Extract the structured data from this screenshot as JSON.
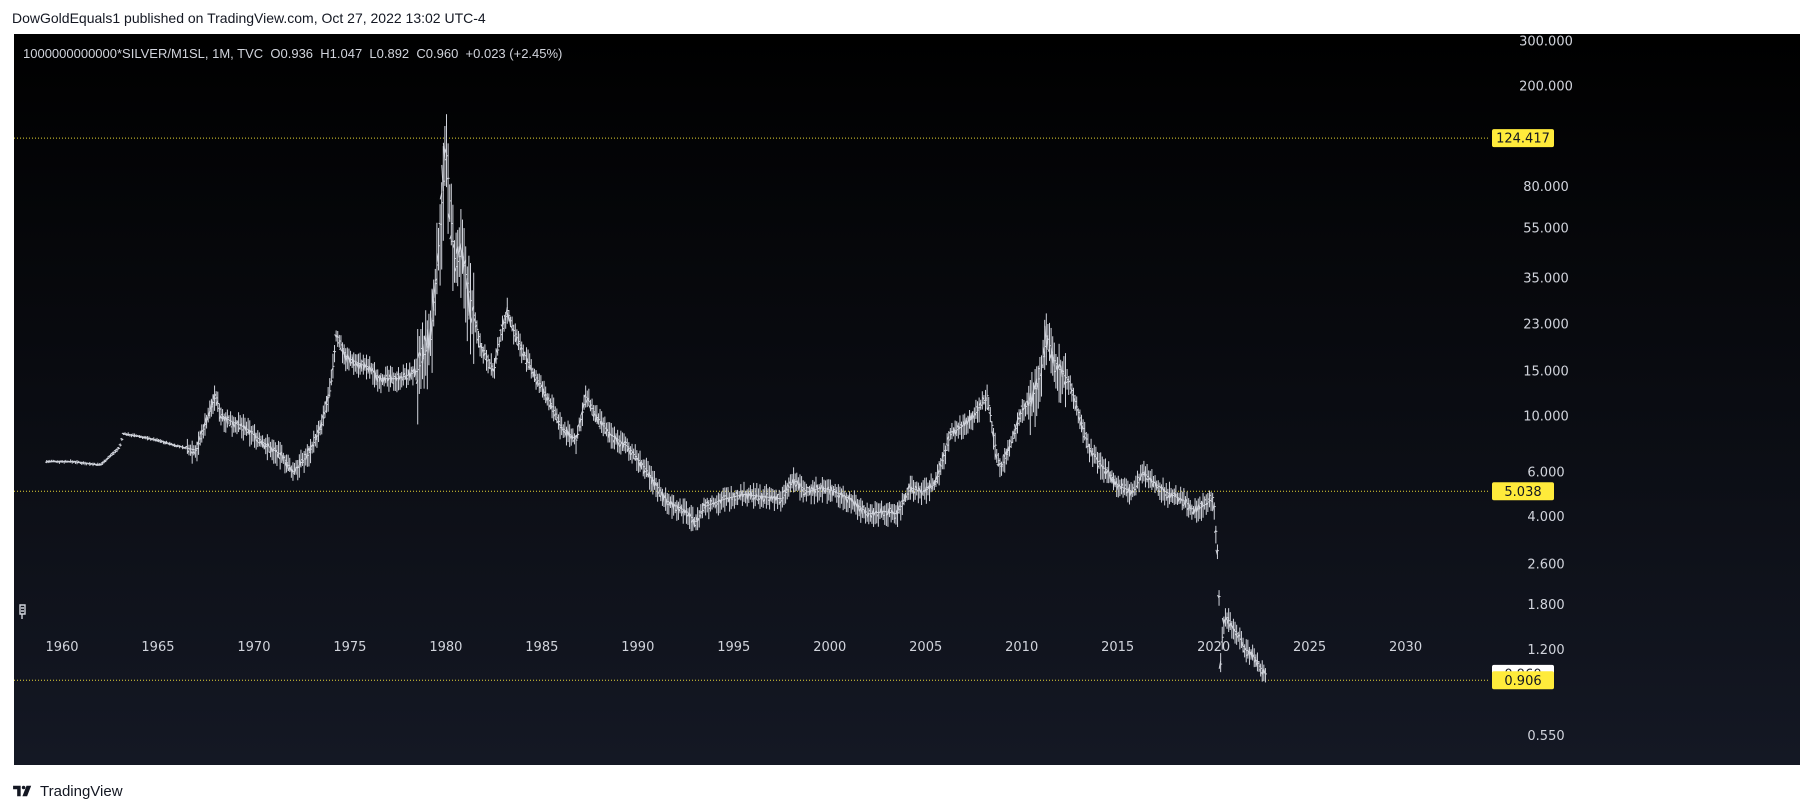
{
  "header": {
    "published_text": "DowGoldEquals1 published on TradingView.com, Oct 27, 2022 13:02 UTC-4"
  },
  "symbol_line": "1000000000000*SILVER/M1SL, 1M, TVC  O0.936  H1.047  L0.892  C0.960  +0.023 (+2.45%)",
  "footer": {
    "brand": "TradingView"
  },
  "colors": {
    "highlight": "#ffeb3b",
    "bar": "#d1d4dc",
    "bg_top": "#000000",
    "bg_bottom": "#141824",
    "axis_text": "#d1d4dc"
  },
  "chart_data": {
    "type": "line",
    "title": "1000000000000*SILVER/M1SL, 1M, TVC",
    "scale": "log",
    "ylim": [
      0.42,
      320
    ],
    "xlim": [
      1957.5,
      2034.4
    ],
    "y_ticks": [
      0.55,
      1.2,
      1.8,
      2.6,
      4.0,
      6.0,
      10.0,
      15.0,
      23.0,
      35.0,
      55.0,
      80.0,
      200.0,
      300.0
    ],
    "y_tick_labels": [
      "0.550",
      "1.200",
      "1.800",
      "2.600",
      "4.000",
      "6.000",
      "10.000",
      "15.000",
      "23.000",
      "35.000",
      "55.000",
      "80.000",
      "200.000",
      "300.000"
    ],
    "x_ticks": [
      1960,
      1965,
      1970,
      1975,
      1980,
      1985,
      1990,
      1995,
      2000,
      2005,
      2010,
      2015,
      2020,
      2025,
      2030
    ],
    "x_tick_labels": [
      "1960",
      "1965",
      "1970",
      "1975",
      "1980",
      "1985",
      "1990",
      "1995",
      "2000",
      "2005",
      "2010",
      "2015",
      "2020",
      "2025",
      "2030"
    ],
    "price_labels": [
      {
        "value": 124.417,
        "text": "124.417",
        "style": "highlight",
        "line": true
      },
      {
        "value": 5.038,
        "text": "5.038",
        "style": "highlight",
        "line": true
      },
      {
        "value": 0.96,
        "text": "0.960",
        "style": "current",
        "line": false
      },
      {
        "value": 0.906,
        "text": "0.906",
        "style": "highlight",
        "line": true
      }
    ],
    "ohlc": {
      "open": 0.936,
      "high": 1.047,
      "low": 0.892,
      "close": 0.96,
      "change": 0.023,
      "change_pct": 2.45
    },
    "series": [
      {
        "x": [
          1959.2,
          1960.5,
          1962.0,
          1963.0,
          1963.2,
          1964.0,
          1965.0,
          1966.0,
          1967.0,
          1967.5,
          1968.0,
          1968.3,
          1968.8,
          1969.5,
          1970.5,
          1971.5,
          1972.0,
          1972.8,
          1973.5,
          1974.0,
          1974.3,
          1974.8,
          1975.5,
          1976.0,
          1976.5,
          1977.5,
          1978.5,
          1979.2,
          1979.6,
          1980.0,
          1980.3,
          1980.5,
          1980.8,
          1981.3,
          1981.8,
          1982.5,
          1982.8,
          1983.2,
          1983.5,
          1984.0,
          1984.5,
          1985.5,
          1986.0,
          1986.8,
          1987.3,
          1987.8,
          1988.5,
          1989.5,
          1990.5,
          1991.5,
          1992.5,
          1993.0,
          1993.5,
          1994.5,
          1995.5,
          1996.5,
          1997.5,
          1998.1,
          1998.8,
          1999.5,
          2000.0,
          2000.8,
          2001.5,
          2002.0,
          2002.8,
          2003.5,
          2004.2,
          2004.8,
          2005.5,
          2006.3,
          2006.8,
          2007.5,
          2008.2,
          2008.7,
          2008.9,
          2009.5,
          2010.0,
          2010.5,
          2011.0,
          2011.3,
          2011.6,
          2012.0,
          2012.5,
          2013.0,
          2013.5,
          2014.0,
          2014.5,
          2015.0,
          2015.8,
          2016.3,
          2016.8,
          2017.5,
          2018.5,
          2019.0,
          2019.6,
          2020.0,
          2020.15,
          2020.25,
          2020.35,
          2020.5,
          2020.7,
          2021.0,
          2021.3,
          2021.6,
          2022.0,
          2022.4,
          2022.7
        ],
        "y": [
          6.6,
          6.6,
          6.4,
          7.5,
          8.5,
          8.3,
          8.0,
          7.6,
          7.3,
          9.5,
          12.0,
          10.0,
          9.5,
          9.0,
          7.8,
          6.9,
          6.0,
          7.0,
          9.0,
          13.0,
          21.0,
          17.0,
          16.0,
          15.5,
          14.0,
          14.0,
          15.0,
          20.0,
          45.0,
          115.0,
          55.0,
          38.0,
          45.0,
          28.0,
          19.0,
          15.0,
          20.0,
          26.0,
          22.0,
          18.0,
          15.0,
          11.0,
          9.0,
          8.0,
          12.0,
          10.0,
          8.5,
          7.5,
          6.0,
          4.6,
          4.2,
          3.8,
          4.4,
          4.7,
          4.9,
          4.8,
          4.7,
          5.6,
          5.0,
          5.2,
          5.1,
          4.8,
          4.4,
          4.1,
          4.2,
          4.1,
          5.2,
          5.0,
          5.4,
          8.5,
          9.0,
          10.0,
          12.0,
          7.0,
          6.2,
          8.0,
          10.5,
          11.5,
          15.0,
          21.0,
          17.0,
          15.0,
          13.5,
          10.0,
          7.5,
          6.5,
          6.0,
          5.3,
          5.0,
          6.0,
          5.5,
          5.0,
          4.6,
          4.2,
          4.5,
          4.8,
          3.2,
          2.7,
          1.0,
          1.55,
          1.6,
          1.45,
          1.35,
          1.2,
          1.15,
          1.02,
          0.96
        ]
      }
    ]
  }
}
